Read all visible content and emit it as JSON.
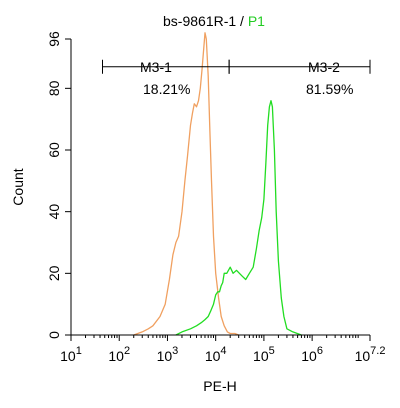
{
  "chart_data": {
    "type": "line",
    "title": {
      "main": "bs-9861R-1",
      "separator": " / ",
      "gate": "P1"
    },
    "xlabel": "PE-H",
    "ylabel": "Count",
    "x_scale": "log",
    "xlim": [
      10,
      15848931
    ],
    "ylim": [
      0,
      96
    ],
    "y_ticks": [
      0,
      20,
      40,
      60,
      80,
      96
    ],
    "x_ticks": [
      {
        "value": 10,
        "base": "10",
        "exp": "1"
      },
      {
        "value": 100,
        "base": "10",
        "exp": "2"
      },
      {
        "value": 1000,
        "base": "10",
        "exp": "3"
      },
      {
        "value": 10000,
        "base": "10",
        "exp": "4"
      },
      {
        "value": 100000,
        "base": "10",
        "exp": "5"
      },
      {
        "value": 1000000,
        "base": "10",
        "exp": "6"
      },
      {
        "value": 15848931,
        "base": "10",
        "exp": "7.2"
      }
    ],
    "grid": false,
    "series": [
      {
        "color": "#f0a060",
        "x": [
          200,
          300,
          400,
          500,
          700,
          900,
          1100,
          1300,
          1500,
          1700,
          2000,
          2300,
          2600,
          3000,
          3300,
          3600,
          4000,
          4400,
          4800,
          5200,
          5600,
          6000,
          6400,
          7000,
          7600,
          8200,
          9000,
          10000,
          11500,
          13000,
          15000,
          17500,
          20000,
          25000,
          30000
        ],
        "y": [
          0,
          1,
          2,
          3,
          6,
          10,
          18,
          26,
          30,
          32,
          40,
          50,
          58,
          68,
          72,
          75,
          74,
          76,
          80,
          86,
          92,
          98,
          96,
          84,
          66,
          50,
          32,
          20,
          12,
          6,
          3,
          1,
          0.5,
          0.5,
          0
        ]
      },
      {
        "color": "#22dd22",
        "x": [
          1500,
          2000,
          3000,
          4000,
          5000,
          6000,
          7000,
          8000,
          9000,
          10000,
          11000,
          12000,
          13000,
          14000,
          15000,
          17000,
          20000,
          23000,
          27000,
          31000,
          36000,
          42000,
          50000,
          60000,
          70000,
          80000,
          90000,
          100000,
          110000,
          120000,
          130000,
          140000,
          150000,
          165000,
          180000,
          200000,
          230000,
          260000,
          300000,
          400000,
          600000
        ],
        "y": [
          0,
          1,
          2,
          3,
          4,
          5,
          6,
          8,
          10,
          13,
          14,
          14,
          16,
          17,
          20,
          20,
          22,
          20,
          21,
          20,
          19,
          18,
          20,
          22,
          28,
          34,
          38,
          44,
          56,
          68,
          74,
          76,
          74,
          60,
          40,
          24,
          12,
          6,
          2,
          1,
          0
        ]
      }
    ],
    "annotations": [
      {
        "name": "M3-1",
        "percent": "18.21%",
        "x_start": 45,
        "x_end": 19000,
        "y": 87
      },
      {
        "name": "M3-2",
        "percent": "81.59%",
        "x_start": 19000,
        "x_end": 15848931,
        "y": 87
      }
    ]
  }
}
